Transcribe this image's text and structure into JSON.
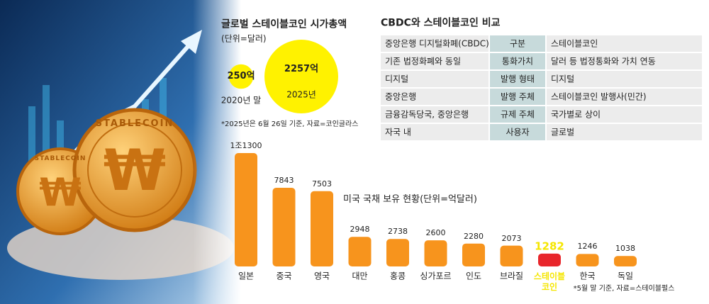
{
  "illustration": {
    "coin_text": "STABLECOIN",
    "symbol": "₩"
  },
  "chart_data": [
    {
      "type": "bubble",
      "title": "글로벌 스테이블코인 시가총액",
      "subtitle": "(단위=달러)",
      "categories": [
        "2020년 말",
        "2025년"
      ],
      "values": [
        250,
        2257
      ],
      "value_labels": [
        "250억",
        "2257억"
      ],
      "color": "#fff200",
      "note": "*2025년은 6월 26일 기준, 자료=코인글라스"
    },
    {
      "type": "bar",
      "title": "미국 국채 보유 현황(단위=억달러)",
      "categories": [
        "일본",
        "중국",
        "영국",
        "대만",
        "홍콩",
        "싱가포르",
        "인도",
        "브라질",
        "스테이블 코인",
        "한국",
        "독일"
      ],
      "values": [
        11300,
        7843,
        7503,
        2948,
        2738,
        2600,
        2280,
        2073,
        1282,
        1246,
        1038
      ],
      "value_labels": [
        "1조1300",
        "7843",
        "7503",
        "2948",
        "2738",
        "2600",
        "2280",
        "2073",
        "1282",
        "1246",
        "1038"
      ],
      "color": "#f7941d",
      "highlight": {
        "index": 8,
        "color": "#e8262b",
        "label_color": "#f5e600"
      },
      "note": "*5월 말 기준, 자료=스테이블펄스"
    }
  ],
  "table": {
    "title": "CBDC와 스테이블코인 비교",
    "rows": [
      [
        "중앙은행 디지털화폐(CBDC)",
        "구분",
        "스테이블코인"
      ],
      [
        "기존 법정화폐와 동일",
        "통화가치",
        "달러 등 법정통화와 가치 연동"
      ],
      [
        "디지털",
        "발행 형태",
        "디지털"
      ],
      [
        "중앙은행",
        "발행 주체",
        "스테이블코인 발행사(민간)"
      ],
      [
        "금융감독당국, 중앙은행",
        "규제 주체",
        "국가별로 상이"
      ],
      [
        "자국 내",
        "사용자",
        "글로벌"
      ]
    ]
  }
}
